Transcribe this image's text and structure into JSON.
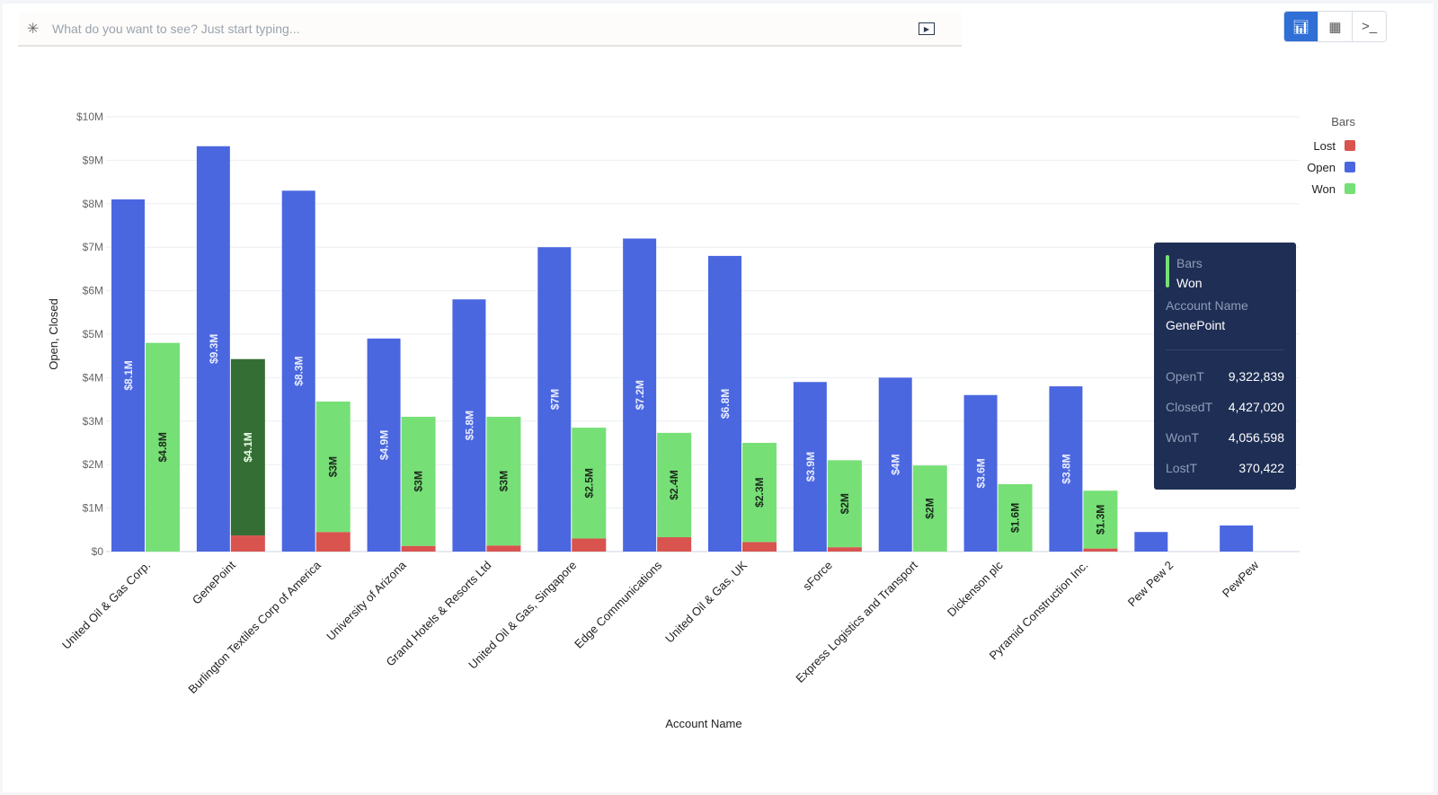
{
  "search": {
    "placeholder": "What do you want to see? Just start typing...",
    "icon": "sparkle-icon",
    "run_icon": "play-icon"
  },
  "view_toggle": [
    {
      "name": "chart-view",
      "icon": "bar-chart-icon",
      "active": true
    },
    {
      "name": "table-view",
      "icon": "table-icon",
      "active": false
    },
    {
      "name": "query-view",
      "icon": "terminal-icon",
      "active": false
    }
  ],
  "chart_data": {
    "type": "bar",
    "xlabel": "Account Name",
    "ylabel": "Open, Closed",
    "ylim": [
      0,
      10000000
    ],
    "yticks": [
      "$0",
      "$1M",
      "$2M",
      "$3M",
      "$4M",
      "$5M",
      "$6M",
      "$7M",
      "$8M",
      "$9M",
      "$10M"
    ],
    "grid": true,
    "legend": {
      "title": "Bars",
      "placement": "top-right",
      "entries": [
        {
          "name": "Lost",
          "color": "#d9534f"
        },
        {
          "name": "Open",
          "color": "#4a67e0"
        },
        {
          "name": "Won",
          "color": "#76e076"
        }
      ]
    },
    "categories": [
      "United Oil & Gas Corp.",
      "GenePoint",
      "Burlington Textiles Corp of America",
      "University of Arizona",
      "Grand Hotels & Resorts Ltd",
      "United Oil & Gas, Singapore",
      "Edge Communications",
      "United Oil & Gas, UK",
      "sForce",
      "Express Logistics and Transport",
      "Dickenson plc",
      "Pyramid Construction Inc.",
      "Pew Pew 2",
      "PewPew"
    ],
    "series": [
      {
        "name": "Open",
        "values": [
          8100000,
          9322839,
          8300000,
          4900000,
          5800000,
          7000000,
          7200000,
          6800000,
          3900000,
          4000000,
          3600000,
          3800000,
          450000,
          600000
        ],
        "labels": [
          "$8.1M",
          "$9.3M",
          "$8.3M",
          "$4.9M",
          "$5.8M",
          "$7M",
          "$7.2M",
          "$6.8M",
          "$3.9M",
          "$4M",
          "$3.6M",
          "$3.8M",
          "",
          ""
        ]
      },
      {
        "name": "Won",
        "values": [
          4800000,
          4056598,
          3000000,
          2970000,
          2960000,
          2550000,
          2400000,
          2280000,
          2000000,
          1980000,
          1550000,
          1330000,
          0,
          0
        ],
        "labels": [
          "$4.8M",
          "$4.1M",
          "$3M",
          "$3M",
          "$3M",
          "$2.5M",
          "$2.4M",
          "$2.3M",
          "$2M",
          "$2M",
          "$1.6M",
          "$1.3M",
          "",
          ""
        ]
      },
      {
        "name": "Lost",
        "values": [
          0,
          370422,
          450000,
          130000,
          140000,
          300000,
          330000,
          220000,
          100000,
          0,
          0,
          70000,
          0,
          0
        ]
      }
    ],
    "highlighted": {
      "series": "Won",
      "category": "GenePoint",
      "color": "#356e35"
    }
  },
  "tooltip": {
    "series_label": "Bars",
    "series_value": "Won",
    "dim_label": "Account Name",
    "dim_value": "GenePoint",
    "rows": [
      {
        "k": "OpenT",
        "v": "9,322,839"
      },
      {
        "k": "ClosedT",
        "v": "4,427,020"
      },
      {
        "k": "WonT",
        "v": "4,056,598"
      },
      {
        "k": "LostT",
        "v": "370,422"
      }
    ]
  }
}
